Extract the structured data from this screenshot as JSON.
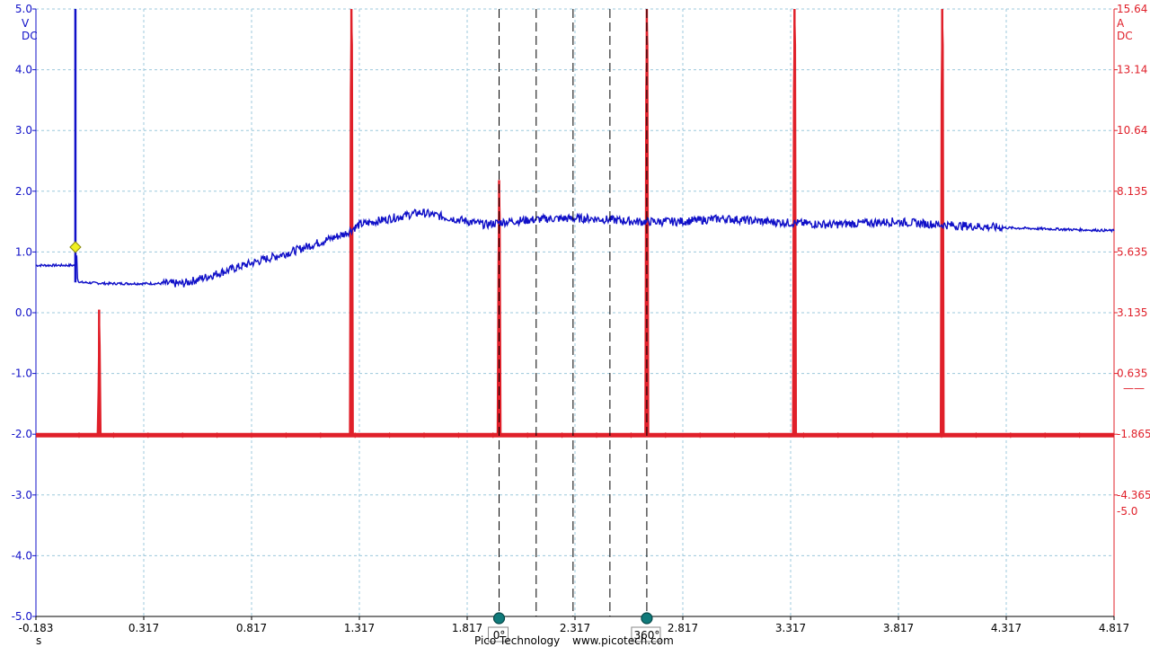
{
  "chart_data": {
    "type": "line",
    "x_unit": "s",
    "x_ticks": [
      "-0.183",
      "0.317",
      "0.817",
      "1.317",
      "1.817",
      "2.317",
      "2.817",
      "3.317",
      "3.817",
      "4.317",
      "4.817"
    ],
    "xlim": [
      -0.183,
      4.817
    ],
    "left_axis": {
      "unit": "V",
      "coupling": "DC",
      "color": "#1010c8",
      "ylim": [
        -5.0,
        5.0
      ],
      "ticks": [
        "5.0",
        "4.0",
        "3.0",
        "2.0",
        "1.0",
        "0.0",
        "-1.0",
        "-2.0",
        "-3.0",
        "-4.0",
        "-5.0"
      ]
    },
    "right_axis": {
      "unit": "A",
      "coupling": "DC",
      "color": "#e0202a",
      "ylim": [
        -6.865,
        15.64
      ],
      "ticks": [
        "15.64",
        "13.14",
        "10.64",
        "8.135",
        "5.635",
        "3.135",
        "0.635",
        "-1.865",
        "-4.365"
      ],
      "extra_label": "-5.0",
      "zero_marker": "——"
    },
    "grid": true,
    "series": [
      {
        "axis": "left",
        "color": "#1010c8",
        "x": [
          -0.183,
          -0.02,
          0.0,
          0.005,
          0.01,
          0.02,
          0.15,
          0.5,
          0.6,
          0.8,
          1.0,
          1.25,
          1.317,
          1.6,
          1.75,
          1.9,
          2.0,
          2.2,
          2.4,
          2.6,
          2.8,
          3.0,
          3.2,
          3.5,
          3.8,
          4.0,
          4.3,
          4.817
        ],
        "y": [
          0.78,
          0.78,
          0.78,
          1.08,
          0.55,
          0.5,
          0.48,
          0.48,
          0.58,
          0.8,
          1.0,
          1.3,
          1.45,
          1.65,
          1.55,
          1.45,
          1.5,
          1.55,
          1.55,
          1.5,
          1.5,
          1.55,
          1.5,
          1.45,
          1.5,
          1.45,
          1.4,
          1.35
        ]
      },
      {
        "axis": "right",
        "color": "#e0202a",
        "baseline": -0.15,
        "spikes": [
          {
            "x": 0.11,
            "peak": 4.5
          },
          {
            "x": 1.28,
            "peak": 15.64
          },
          {
            "x": 1.965,
            "peak": 9.3
          },
          {
            "x": 2.65,
            "peak": 15.64
          },
          {
            "x": 3.335,
            "peak": 15.64
          },
          {
            "x": 4.02,
            "peak": 15.64
          }
        ]
      }
    ],
    "trigger_marker": {
      "x": 0.0,
      "y": 1.08,
      "color": "#f0f020"
    },
    "phase_rulers": {
      "color": "#107a7a",
      "start": {
        "x": 1.965,
        "label": "0°"
      },
      "end": {
        "x": 2.65,
        "label": "360°"
      },
      "dashed_lines_x": [
        1.965,
        2.137,
        2.308,
        2.479,
        2.65
      ]
    }
  },
  "footer": {
    "company": "Pico Technology",
    "website": "www.picotech.com"
  }
}
